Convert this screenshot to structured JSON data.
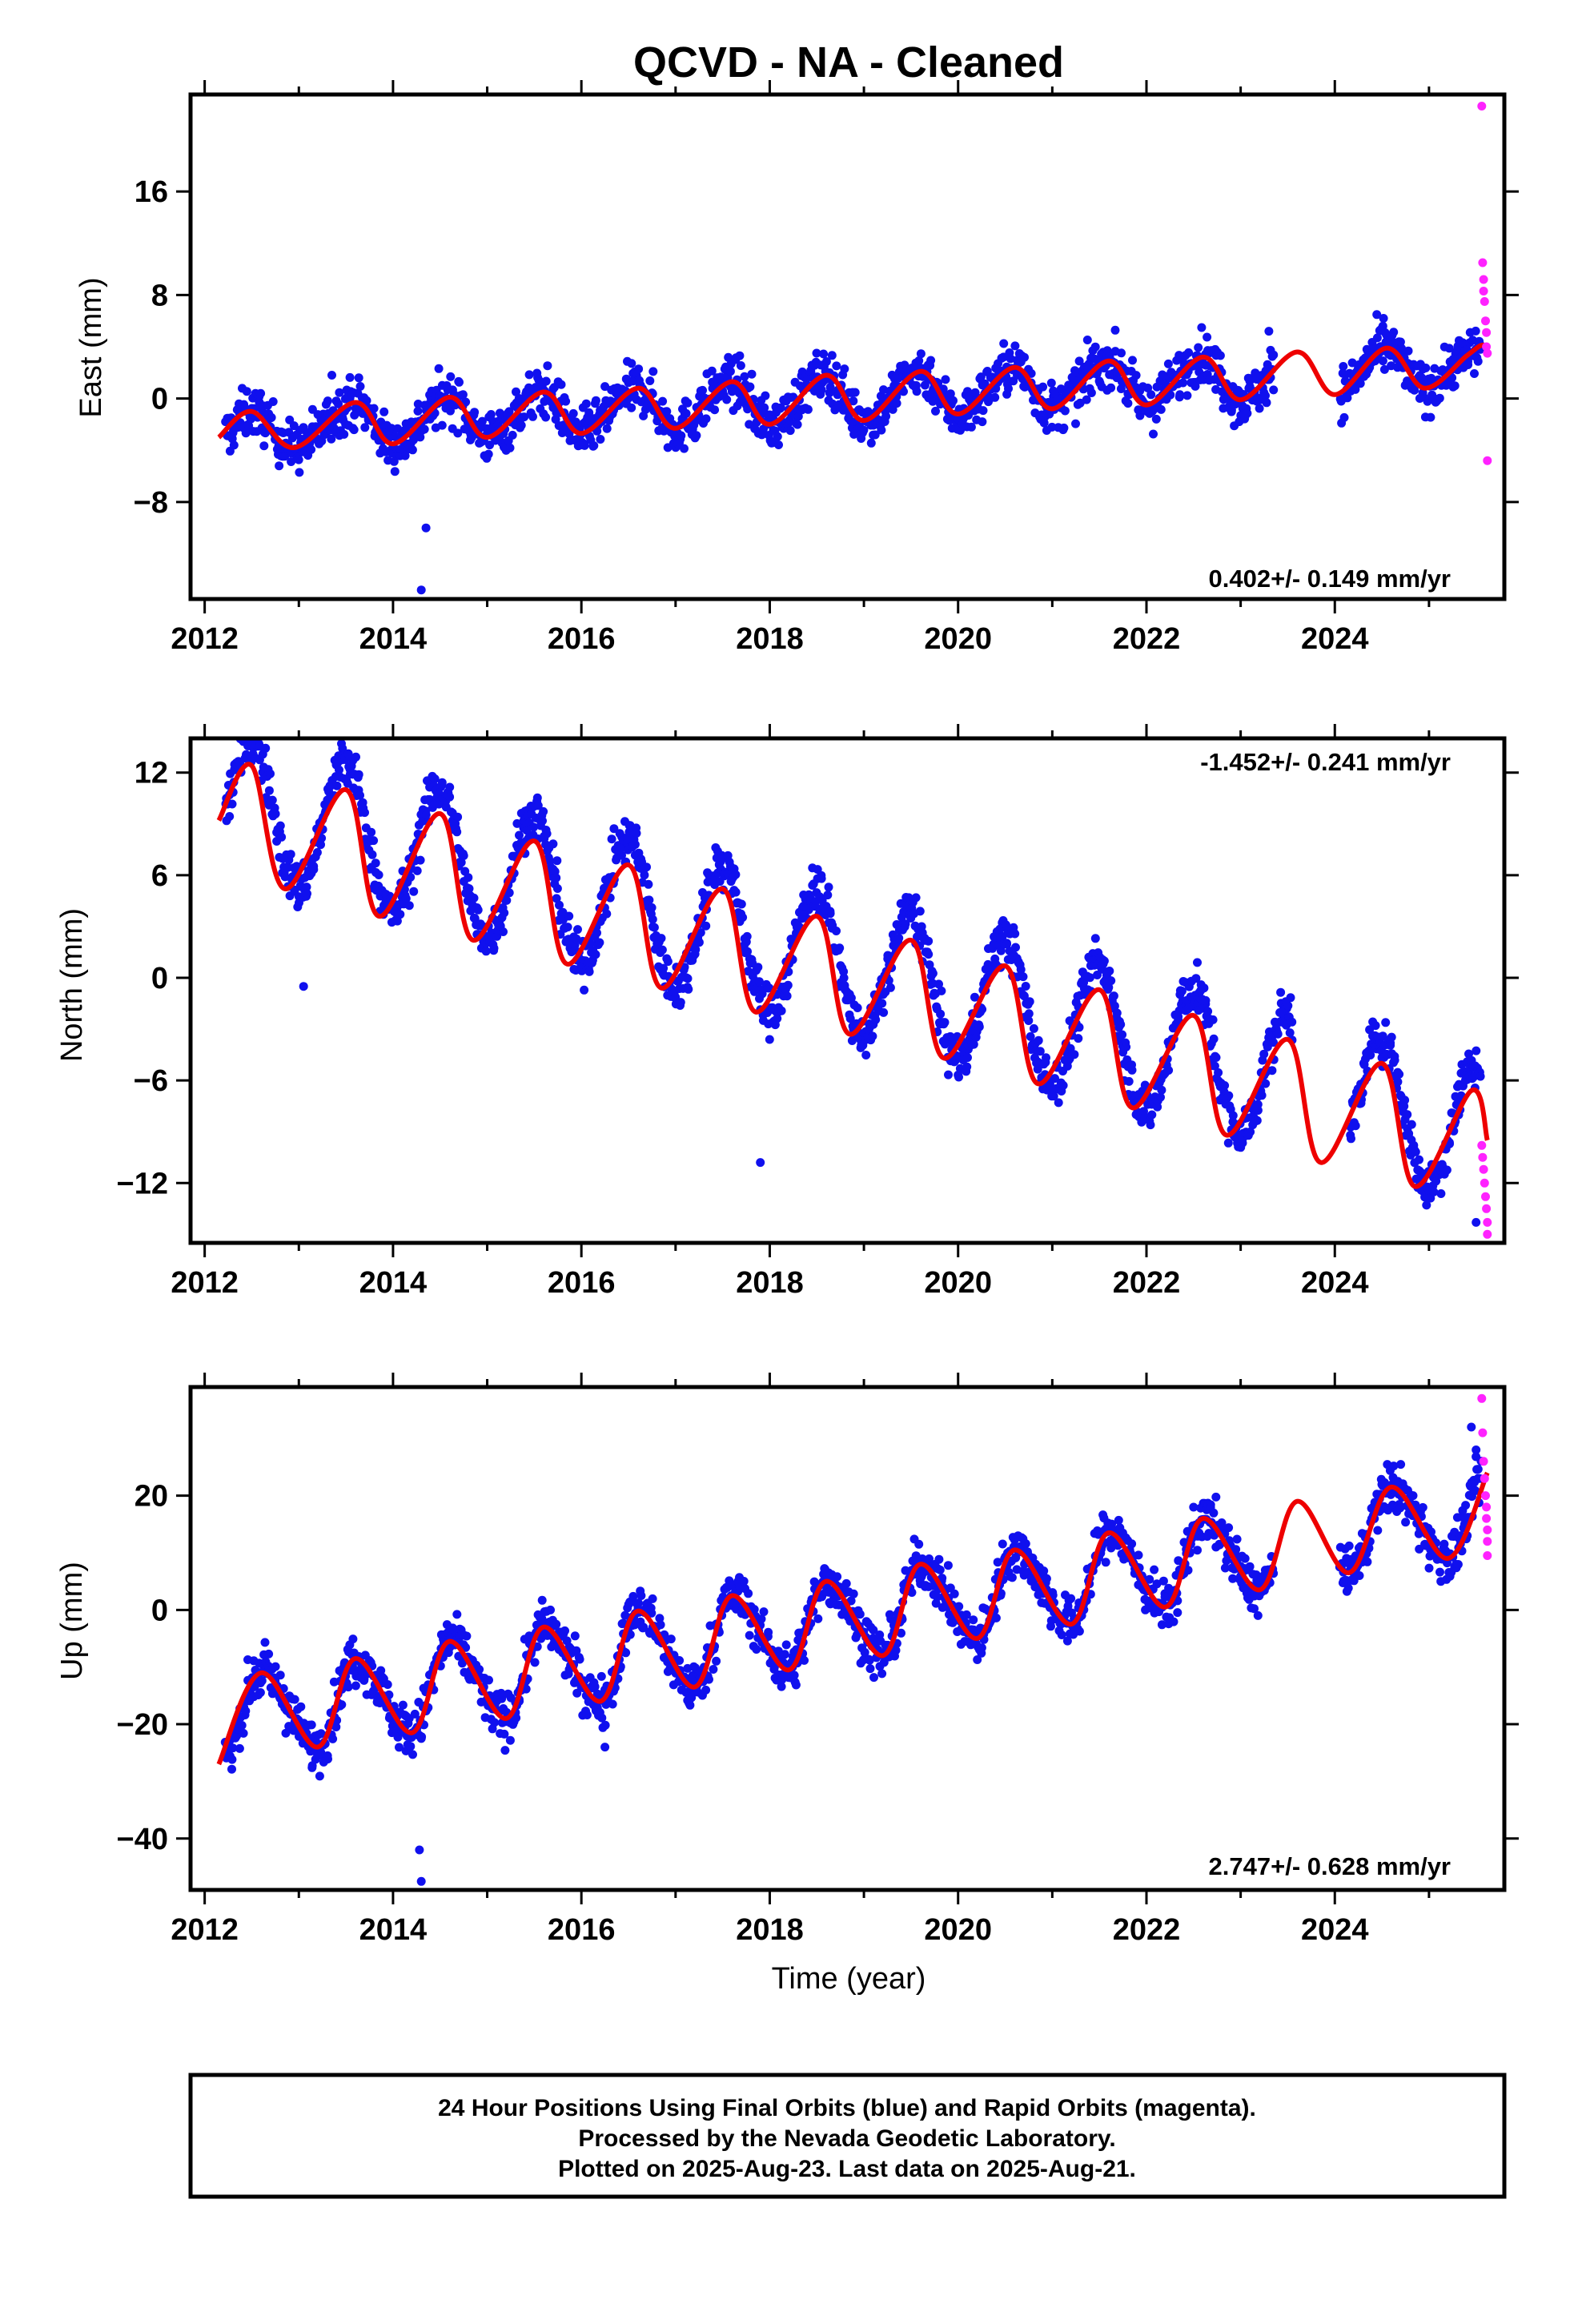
{
  "title": "QCVD  - NA - Cleaned",
  "colors": {
    "final": "#1010ee",
    "rapid": "#ff22ff",
    "model": "#ee0000",
    "axis": "#000000"
  },
  "caption": {
    "line1": "24 Hour Positions Using Final Orbits (blue) and Rapid Orbits (magenta).",
    "line2": "Processed by the Nevada Geodetic Laboratory.",
    "line3": "Plotted on 2025-Aug-23. Last data on 2025-Aug-21."
  },
  "chart_data": [
    {
      "type": "scatter",
      "component": "east",
      "ylabel": "East (mm)",
      "xlabel": "",
      "xlim": [
        2011.85,
        2025.8
      ],
      "ylim": [
        -15.5,
        23.5
      ],
      "xticks": [
        2012,
        2014,
        2016,
        2018,
        2020,
        2022,
        2024
      ],
      "yticks": [
        16,
        8,
        0,
        -8
      ],
      "rate": "0.402+/- 0.149 mm/yr",
      "rate_position": "bottom-right",
      "grid": false,
      "model": {
        "x": [
          2012.15,
          2012.5,
          2012.95,
          2013.6,
          2014.0,
          2014.6,
          2015.0,
          2015.6,
          2016.0,
          2016.6,
          2017.0,
          2017.6,
          2018.0,
          2018.6,
          2019.0,
          2019.6,
          2020.0,
          2020.6,
          2021.0,
          2021.6,
          2022.0,
          2022.6,
          2023.0,
          2023.6,
          2024.0,
          2024.55,
          2024.95,
          2025.4,
          2025.55,
          2025.62
        ],
        "y": [
          -3.0,
          -1.0,
          -3.8,
          -0.3,
          -3.5,
          0.1,
          -3.0,
          0.5,
          -2.7,
          0.8,
          -2.3,
          1.3,
          -2.0,
          1.8,
          -1.7,
          2.1,
          -1.2,
          2.4,
          -0.8,
          2.9,
          -0.5,
          3.2,
          -0.1,
          3.6,
          0.3,
          3.9,
          0.8,
          3.3,
          4.1,
          4.0
        ]
      },
      "final_orbits": {
        "date_range": [
          2012.22,
          2025.55
        ],
        "gap": [
          2023.35,
          2024.05
        ],
        "outliers": {
          "x": [
            2014.3,
            2014.35,
            2013.35,
            2023.3
          ],
          "y": [
            -14.8,
            -10.0,
            1.8,
            5.2
          ]
        }
      },
      "rapid_orbits": {
        "x": [
          2025.56,
          2025.57,
          2025.58,
          2025.58,
          2025.59,
          2025.6,
          2025.61,
          2025.61,
          2025.62,
          2025.62
        ],
        "y": [
          22.6,
          10.5,
          9.2,
          8.3,
          7.5,
          6.0,
          5.1,
          4.0,
          3.5,
          -4.8
        ]
      }
    },
    {
      "type": "scatter",
      "component": "north",
      "ylabel": "North (mm)",
      "xlabel": "",
      "xlim": [
        2011.85,
        2025.8
      ],
      "ylim": [
        -15.5,
        14.0
      ],
      "xticks": [
        2012,
        2014,
        2016,
        2018,
        2020,
        2022,
        2024
      ],
      "yticks": [
        12,
        6,
        0,
        -6,
        -12
      ],
      "rate": "-1.452+/- 0.241 mm/yr",
      "rate_position": "top-right",
      "grid": false,
      "model": {
        "x": [
          2012.15,
          2012.5,
          2012.85,
          2013.5,
          2013.85,
          2014.5,
          2014.85,
          2015.5,
          2015.85,
          2016.5,
          2016.85,
          2017.5,
          2017.85,
          2018.5,
          2018.85,
          2019.5,
          2019.85,
          2020.5,
          2020.85,
          2021.5,
          2021.85,
          2022.5,
          2022.85,
          2023.5,
          2023.85,
          2024.5,
          2024.85,
          2025.45,
          2025.62
        ],
        "y": [
          9.2,
          12.4,
          5.2,
          11.0,
          3.6,
          9.6,
          2.2,
          8.0,
          0.8,
          6.6,
          -0.6,
          5.2,
          -2.0,
          3.6,
          -3.3,
          2.2,
          -4.7,
          0.7,
          -6.2,
          -0.7,
          -7.6,
          -2.2,
          -9.2,
          -3.6,
          -10.8,
          -5.0,
          -12.2,
          -6.6,
          -9.5
        ]
      },
      "final_orbits": {
        "date_range": [
          2012.22,
          2025.55
        ],
        "gap": [
          2023.55,
          2024.15
        ],
        "outliers": {
          "x": [
            2012.5,
            2013.05,
            2017.9,
            2025.5
          ],
          "y": [
            13.8,
            -0.5,
            -10.8,
            -14.3
          ]
        }
      },
      "rapid_orbits": {
        "x": [
          2025.56,
          2025.57,
          2025.58,
          2025.59,
          2025.6,
          2025.61,
          2025.62,
          2025.62
        ],
        "y": [
          -9.8,
          -10.5,
          -11.2,
          -12.0,
          -12.8,
          -13.5,
          -14.3,
          -15.0
        ]
      }
    },
    {
      "type": "scatter",
      "component": "up",
      "ylabel": "Up (mm)",
      "xlabel": "Time (year)",
      "xlim": [
        2011.85,
        2025.8
      ],
      "ylim": [
        -49.0,
        39.0
      ],
      "xticks": [
        2012,
        2014,
        2016,
        2018,
        2020,
        2022,
        2024
      ],
      "yticks": [
        20,
        0,
        -20,
        -40
      ],
      "rate": "2.747+/- 0.628 mm/yr",
      "rate_position": "bottom-right",
      "grid": false,
      "model": {
        "x": [
          2012.15,
          2012.6,
          2013.2,
          2013.6,
          2014.2,
          2014.6,
          2015.2,
          2015.6,
          2016.2,
          2016.6,
          2017.2,
          2017.6,
          2018.2,
          2018.6,
          2019.2,
          2019.6,
          2020.2,
          2020.6,
          2021.2,
          2021.6,
          2022.2,
          2022.6,
          2023.2,
          2023.6,
          2024.15,
          2024.6,
          2025.2,
          2025.62
        ],
        "y": [
          -27.0,
          -11.0,
          -24.0,
          -8.5,
          -21.5,
          -5.5,
          -19.0,
          -3.0,
          -16.0,
          -0.2,
          -13.5,
          2.5,
          -10.5,
          5.0,
          -8.0,
          8.0,
          -5.0,
          10.5,
          -2.5,
          13.5,
          0.5,
          16.0,
          3.5,
          19.0,
          6.5,
          21.5,
          9.0,
          24.0
        ]
      },
      "final_orbits": {
        "date_range": [
          2012.22,
          2025.55
        ],
        "gap": [
          2023.35,
          2024.05
        ],
        "outliers": {
          "x": [
            2014.3,
            2014.28,
            2016.25,
            2025.45,
            2025.5
          ],
          "y": [
            -47.5,
            -42.0,
            -24.0,
            32.0,
            28.0
          ]
        }
      },
      "rapid_orbits": {
        "x": [
          2025.56,
          2025.57,
          2025.58,
          2025.59,
          2025.6,
          2025.61,
          2025.61,
          2025.62,
          2025.62,
          2025.62
        ],
        "y": [
          37.0,
          31.0,
          26.0,
          23.0,
          20.0,
          18.0,
          16.0,
          14.0,
          12.0,
          9.5
        ]
      }
    }
  ]
}
